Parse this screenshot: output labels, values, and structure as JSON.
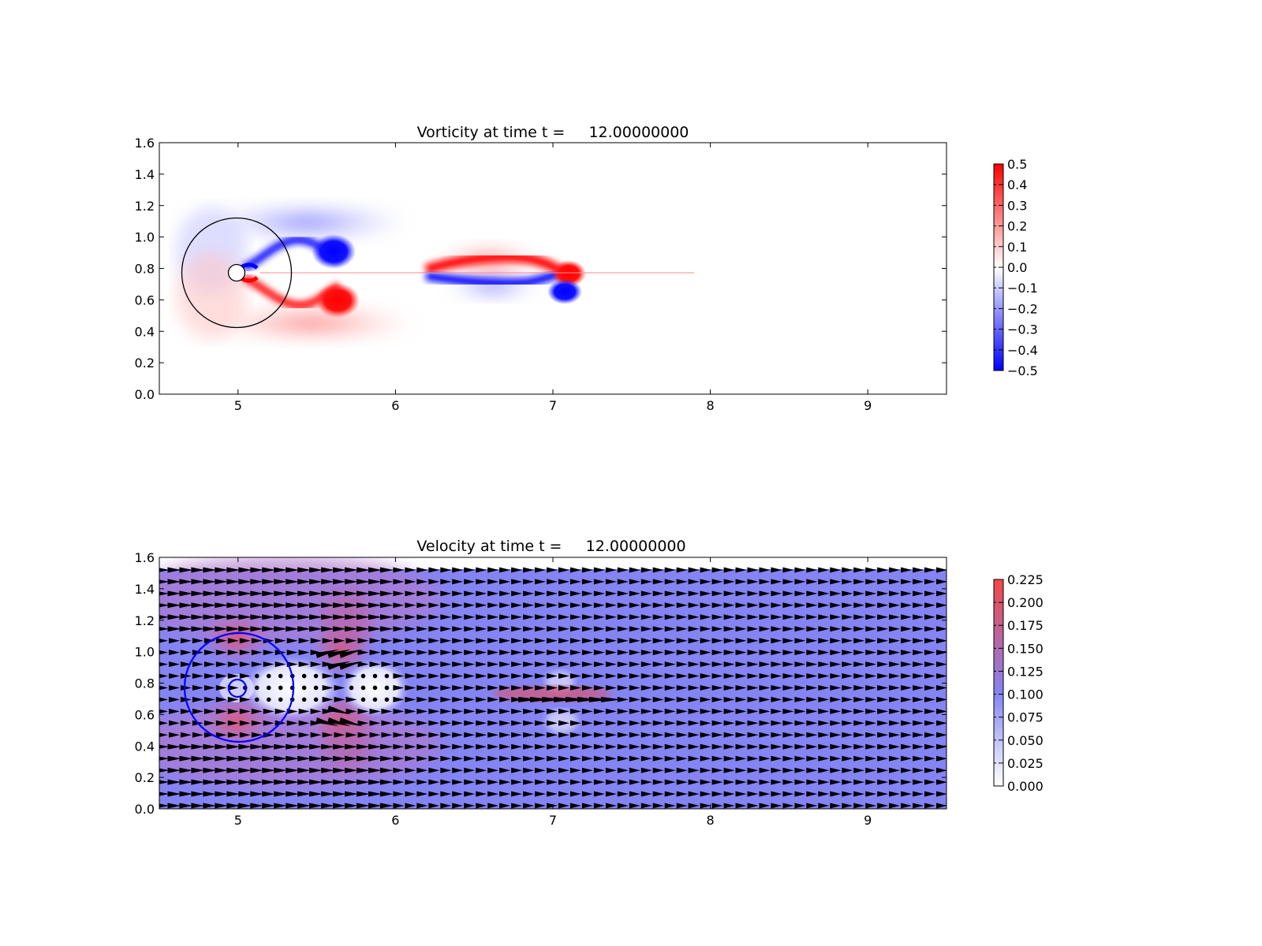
{
  "figure": {
    "background": "#ffffff"
  },
  "chart_data": [
    {
      "type": "heatmap",
      "title": "Vorticity at time t =     12.00000000",
      "xlabel": "",
      "ylabel": "",
      "xlim": [
        4.5,
        9.5
      ],
      "ylim": [
        0.0,
        1.6
      ],
      "xticks": [
        "5",
        "6",
        "7",
        "8",
        "9"
      ],
      "yticks": [
        "0.0",
        "0.2",
        "0.4",
        "0.6",
        "0.8",
        "1.0",
        "1.2",
        "1.4",
        "1.6"
      ],
      "colormap": "bwr",
      "colorbar": {
        "range": [
          -0.5,
          0.5
        ],
        "colors": [
          "#0000ff",
          "#ffffff",
          "#ff0000"
        ],
        "ticks": [
          "0.5",
          "0.4",
          "0.3",
          "0.2",
          "0.1",
          "0.0",
          "−0.1",
          "−0.2",
          "−0.3",
          "−0.4",
          "−0.5"
        ]
      },
      "grid": false,
      "features": [
        {
          "kind": "circle",
          "cx": 5.0,
          "cy": 0.76,
          "r": 0.35,
          "color": "#000000"
        },
        {
          "kind": "circle",
          "cx": 5.0,
          "cy": 0.76,
          "r": 0.05,
          "color": "#000000"
        },
        {
          "kind": "vortex",
          "cx": 5.62,
          "cy": 0.9,
          "rx": 0.13,
          "ry": 0.1,
          "sign": "negative"
        },
        {
          "kind": "vortex",
          "cx": 5.65,
          "cy": 0.6,
          "rx": 0.13,
          "ry": 0.1,
          "sign": "positive"
        },
        {
          "kind": "vortex",
          "cx": 7.11,
          "cy": 0.78,
          "rx": 0.1,
          "ry": 0.07,
          "sign": "positive"
        },
        {
          "kind": "vortex",
          "cx": 7.08,
          "cy": 0.64,
          "rx": 0.1,
          "ry": 0.07,
          "sign": "negative"
        }
      ]
    },
    {
      "type": "heatmap",
      "title": "Velocity at time t =     12.00000000",
      "xlabel": "",
      "ylabel": "",
      "xlim": [
        4.5,
        9.5
      ],
      "ylim": [
        0.0,
        1.6
      ],
      "xticks": [
        "5",
        "6",
        "7",
        "8",
        "9"
      ],
      "yticks": [
        "0.0",
        "0.2",
        "0.4",
        "0.6",
        "0.8",
        "1.0",
        "1.2",
        "1.4",
        "1.6"
      ],
      "field_top": 1.52,
      "colormap": "white-blue-red",
      "colorbar": {
        "range": [
          0.0,
          0.225
        ],
        "colors": [
          "#ffffff",
          "#8484f5",
          "#f24747"
        ],
        "ticks": [
          "0.225",
          "0.200",
          "0.175",
          "0.150",
          "0.125",
          "0.100",
          "0.075",
          "0.050",
          "0.025",
          "0.000"
        ]
      },
      "grid": false,
      "quiver": {
        "dx": 0.075,
        "dy": 0.075,
        "color": "#000000"
      },
      "features": [
        {
          "kind": "circle",
          "cx": 5.0,
          "cy": 0.76,
          "r": 0.35,
          "color": "#0000ff"
        },
        {
          "kind": "circle",
          "cx": 5.0,
          "cy": 0.76,
          "r": 0.055,
          "color": "#0000ff"
        }
      ]
    }
  ]
}
